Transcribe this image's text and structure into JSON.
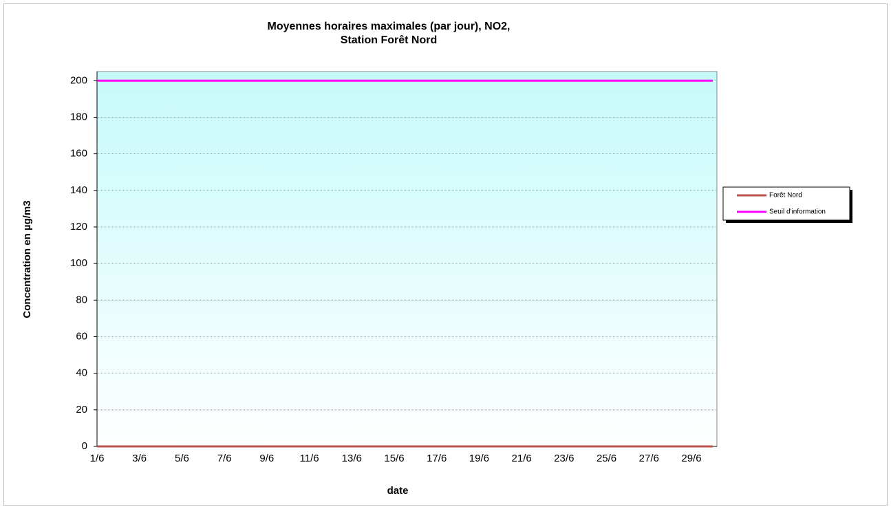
{
  "chart_data": {
    "type": "line",
    "title": [
      "Moyennes horaires maximales (par jour), NO2,",
      "Station Forêt Nord"
    ],
    "x_label": "date",
    "y_label": "Concentration en µg/m3",
    "categories": [
      "1/6",
      null,
      "3/6",
      null,
      "5/6",
      null,
      "7/6",
      null,
      "9/6",
      null,
      "11/6",
      null,
      "13/6",
      null,
      "15/6",
      null,
      "17/6",
      null,
      "19/6",
      null,
      "21/6",
      null,
      "23/6",
      null,
      "25/6",
      null,
      "27/6",
      null,
      "29/6",
      null
    ],
    "series": [
      {
        "name": "Forêt Nord",
        "color": "#c0504d",
        "values": [
          0,
          0,
          0,
          0,
          0,
          0,
          0,
          0,
          0,
          0,
          0,
          0,
          0,
          0,
          0,
          0,
          0,
          0,
          0,
          0,
          0,
          0,
          0,
          0,
          0,
          0,
          0,
          0,
          0,
          0
        ]
      },
      {
        "name": "Seuil d'information",
        "color": "#ff00ff",
        "values": [
          200,
          200,
          200,
          200,
          200,
          200,
          200,
          200,
          200,
          200,
          200,
          200,
          200,
          200,
          200,
          200,
          200,
          200,
          200,
          200,
          200,
          200,
          200,
          200,
          200,
          200,
          200,
          200,
          200,
          200
        ]
      }
    ],
    "ylim": [
      0,
      205
    ],
    "yticks": [
      0,
      20,
      40,
      60,
      80,
      100,
      120,
      140,
      160,
      180,
      200
    ],
    "grid": true,
    "legend": "right"
  }
}
